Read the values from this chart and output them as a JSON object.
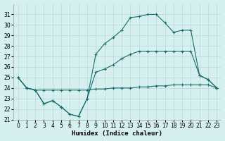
{
  "xlabel": "Humidex (Indice chaleur)",
  "bg_color": "#d6f0f0",
  "grid_color": "#b8d8d8",
  "line_color": "#1a6b6b",
  "xlim": [
    -0.5,
    23.5
  ],
  "ylim": [
    21,
    32
  ],
  "yticks": [
    21,
    22,
    23,
    24,
    25,
    26,
    27,
    28,
    29,
    30,
    31
  ],
  "xticks": [
    0,
    1,
    2,
    3,
    4,
    5,
    6,
    7,
    8,
    9,
    10,
    11,
    12,
    13,
    14,
    15,
    16,
    17,
    18,
    19,
    20,
    21,
    22,
    23
  ],
  "line1_x": [
    0,
    1,
    2,
    3,
    4,
    5,
    6,
    7,
    8,
    9,
    10,
    11,
    12,
    13,
    14,
    15,
    16,
    17,
    18,
    19,
    20,
    21,
    22,
    23
  ],
  "line1_y": [
    25,
    24,
    23.8,
    22.5,
    22.8,
    22.2,
    21.5,
    21.3,
    23.0,
    25.5,
    25.8,
    26.2,
    26.8,
    27.2,
    27.5,
    27.5,
    27.5,
    27.5,
    27.5,
    27.5,
    27.5,
    25.2,
    24.8,
    24.0
  ],
  "line2_x": [
    0,
    1,
    2,
    3,
    4,
    5,
    6,
    7,
    8,
    9,
    10,
    11,
    12,
    13,
    14,
    15,
    16,
    17,
    18,
    19,
    20,
    21,
    22,
    23
  ],
  "line2_y": [
    25,
    24,
    23.8,
    22.5,
    22.8,
    22.2,
    21.5,
    21.3,
    23.0,
    27.2,
    28.2,
    28.8,
    29.5,
    30.7,
    30.8,
    31.0,
    31.0,
    30.2,
    29.3,
    29.5,
    29.5,
    25.2,
    24.8,
    24.0
  ],
  "line3_x": [
    0,
    1,
    2,
    3,
    4,
    5,
    6,
    7,
    8,
    9,
    10,
    11,
    12,
    13,
    14,
    15,
    16,
    17,
    18,
    19,
    20,
    21,
    22,
    23
  ],
  "line3_y": [
    25,
    24,
    23.8,
    23.8,
    23.8,
    23.8,
    23.8,
    23.8,
    23.8,
    23.9,
    23.9,
    24.0,
    24.0,
    24.0,
    24.1,
    24.1,
    24.2,
    24.2,
    24.3,
    24.3,
    24.3,
    24.3,
    24.3,
    24.0
  ]
}
